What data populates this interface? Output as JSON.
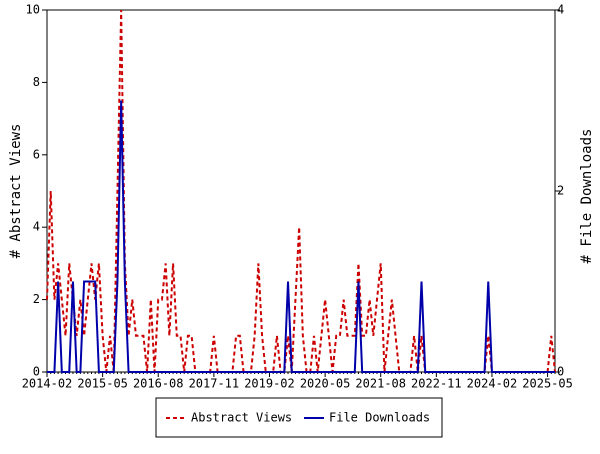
{
  "chart_data": {
    "type": "line",
    "ylabel": "# Abstract Views",
    "y2label": "# File Downloads",
    "categories": [
      "2014-02",
      null,
      null,
      null,
      null,
      null,
      null,
      null,
      null,
      null,
      null,
      null,
      null,
      null,
      null,
      "2015-05",
      null,
      null,
      null,
      null,
      null,
      null,
      null,
      null,
      null,
      null,
      null,
      null,
      null,
      null,
      "2016-08",
      null,
      null,
      null,
      null,
      null,
      null,
      null,
      null,
      null,
      null,
      null,
      null,
      null,
      null,
      "2017-11",
      null,
      null,
      null,
      null,
      null,
      null,
      null,
      null,
      null,
      null,
      null,
      null,
      null,
      null,
      "2019-02",
      null,
      null,
      null,
      null,
      null,
      null,
      null,
      null,
      null,
      null,
      null,
      null,
      null,
      null,
      "2020-05",
      null,
      null,
      null,
      null,
      null,
      null,
      null,
      null,
      null,
      null,
      null,
      null,
      null,
      null,
      "2021-08",
      null,
      null,
      null,
      null,
      null,
      null,
      null,
      null,
      null,
      null,
      null,
      null,
      null,
      null,
      "2022-11",
      null,
      null,
      null,
      null,
      null,
      null,
      null,
      null,
      null,
      null,
      null,
      null,
      null,
      null,
      "2024-02",
      null,
      null,
      null,
      null,
      null,
      null,
      null,
      null,
      null,
      null,
      null,
      null,
      null,
      null,
      "2025-05",
      null,
      null
    ],
    "series": [
      {
        "name": "Abstract Views",
        "color": "#cc0000",
        "dash": true,
        "values": [
          2,
          5,
          2,
          3,
          2,
          1,
          3,
          2,
          1,
          2,
          1,
          2,
          3,
          2,
          3,
          1,
          0,
          1,
          0,
          5,
          10,
          3,
          1,
          2,
          1,
          1,
          1,
          0,
          2,
          0,
          2,
          2,
          3,
          1,
          3,
          1,
          1,
          0,
          1,
          1,
          0,
          0,
          0,
          0,
          0,
          1,
          0,
          0,
          0,
          0,
          0,
          1,
          1,
          0,
          0,
          0,
          1,
          3,
          1,
          0,
          0,
          0,
          1,
          0,
          0,
          1,
          0,
          2,
          4,
          1,
          0,
          0,
          1,
          0,
          1,
          2,
          1,
          0,
          1,
          1,
          2,
          1,
          1,
          1,
          3,
          1,
          1,
          2,
          1,
          2,
          3,
          0,
          1,
          2,
          1,
          0,
          0,
          0,
          0,
          1,
          0,
          1,
          0,
          0,
          0,
          0,
          0,
          0,
          0,
          0,
          0,
          0,
          0,
          0,
          0,
          0,
          0,
          0,
          0,
          1,
          0,
          0,
          0,
          0,
          0,
          0,
          0,
          0,
          0,
          0,
          0,
          0,
          0,
          0,
          0,
          0,
          1,
          0
        ]
      },
      {
        "name": "File Downloads",
        "color": "#0000aa",
        "axis": "y2",
        "values": [
          0,
          0,
          0,
          1,
          0,
          0,
          0,
          1,
          0,
          0,
          1,
          1,
          1,
          1,
          0,
          0,
          0,
          0,
          0,
          1,
          3,
          1,
          0,
          0,
          0,
          0,
          0,
          0,
          0,
          0,
          0,
          0,
          0,
          0,
          0,
          0,
          0,
          0,
          0,
          0,
          0,
          0,
          0,
          0,
          0,
          0,
          0,
          0,
          0,
          0,
          0,
          0,
          0,
          0,
          0,
          0,
          0,
          0,
          0,
          0,
          0,
          0,
          0,
          0,
          0,
          1,
          0,
          0,
          0,
          0,
          0,
          0,
          0,
          0,
          0,
          0,
          0,
          0,
          0,
          0,
          0,
          0,
          0,
          0,
          1,
          0,
          0,
          0,
          0,
          0,
          0,
          0,
          0,
          0,
          0,
          0,
          0,
          0,
          0,
          0,
          0,
          1,
          0,
          0,
          0,
          0,
          0,
          0,
          0,
          0,
          0,
          0,
          0,
          0,
          0,
          0,
          0,
          0,
          0,
          1,
          0,
          0,
          0,
          0,
          0,
          0,
          0,
          0,
          0,
          0,
          0,
          0,
          0,
          0,
          0,
          0,
          0,
          0
        ]
      }
    ],
    "ylim": [
      0,
      10
    ],
    "yticks": [
      0,
      2,
      4,
      6,
      8,
      10
    ],
    "y2lim": [
      0,
      4
    ],
    "y2ticks": [
      0,
      2,
      4
    ]
  }
}
